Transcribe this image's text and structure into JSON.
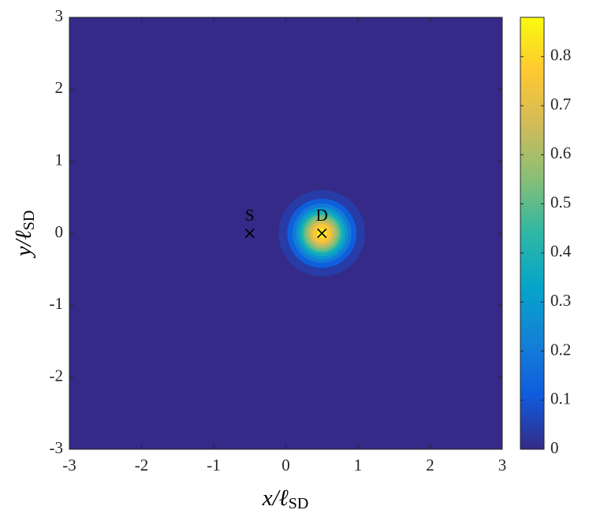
{
  "chart_data": {
    "type": "contour",
    "xlabel": [
      "x/ℓ",
      "SD"
    ],
    "ylabel": [
      "y/ℓ",
      "SD"
    ],
    "xlim": [
      -3,
      3
    ],
    "ylim": [
      -3,
      3
    ],
    "xticks": [
      -3,
      -2,
      -1,
      0,
      1,
      2,
      3
    ],
    "yticks": [
      -3,
      -2,
      -1,
      0,
      1,
      2,
      3
    ],
    "clim": [
      0,
      0.88
    ],
    "cticks": [
      0,
      0.1,
      0.2,
      0.3,
      0.4,
      0.5,
      0.6,
      0.7,
      0.8
    ],
    "colormap": [
      "#352a87",
      "#0f5cdd",
      "#1481d6",
      "#06a4ca",
      "#2eb7a4",
      "#87bf77",
      "#d1bb59",
      "#fec832",
      "#f9fb0e"
    ],
    "center": {
      "x": 0.5,
      "y": 0
    },
    "contours": [
      {
        "level": 0.04,
        "radius": 0.6
      },
      {
        "level": 0.12,
        "radius": 0.48
      },
      {
        "level": 0.2,
        "radius": 0.41
      },
      {
        "level": 0.28,
        "radius": 0.36
      },
      {
        "level": 0.36,
        "radius": 0.32
      },
      {
        "level": 0.44,
        "radius": 0.28
      },
      {
        "level": 0.52,
        "radius": 0.25
      },
      {
        "level": 0.6,
        "radius": 0.21
      },
      {
        "level": 0.68,
        "radius": 0.17
      },
      {
        "level": 0.76,
        "radius": 0.13
      },
      {
        "level": 0.84,
        "radius": 0.07
      }
    ],
    "points": [
      {
        "label": "S",
        "x": -0.5,
        "y": 0
      },
      {
        "label": "D",
        "x": 0.5,
        "y": 0
      }
    ]
  }
}
